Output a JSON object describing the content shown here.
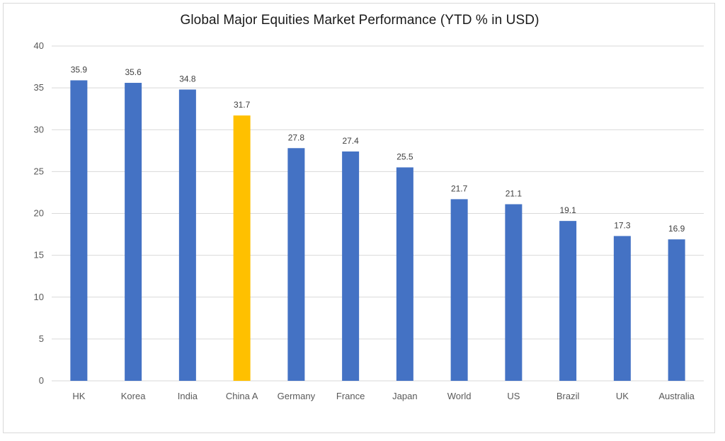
{
  "chart_data": {
    "type": "bar",
    "title": "Global Major Equities Market Performance (YTD % in USD)",
    "categories": [
      "HK",
      "Korea",
      "India",
      "China A",
      "Germany",
      "France",
      "Japan",
      "World",
      "US",
      "Brazil",
      "UK",
      "Australia"
    ],
    "values": [
      35.9,
      35.6,
      34.8,
      31.7,
      27.8,
      27.4,
      25.5,
      21.7,
      21.1,
      19.1,
      17.3,
      16.9
    ],
    "value_labels": [
      "35.9",
      "35.6",
      "34.8",
      "31.7",
      "27.8",
      "27.4",
      "25.5",
      "21.7",
      "21.1",
      "19.1",
      "17.3",
      "16.9"
    ],
    "highlight_category": "China A",
    "ylim": [
      0,
      40
    ],
    "yticks": [
      "0",
      "5",
      "10",
      "15",
      "20",
      "25",
      "30",
      "35",
      "40"
    ],
    "grid": true,
    "legend": "none",
    "colors": {
      "bar": "#4472C4",
      "highlight": "#FFC000",
      "grid": "#d9d9d9"
    }
  }
}
